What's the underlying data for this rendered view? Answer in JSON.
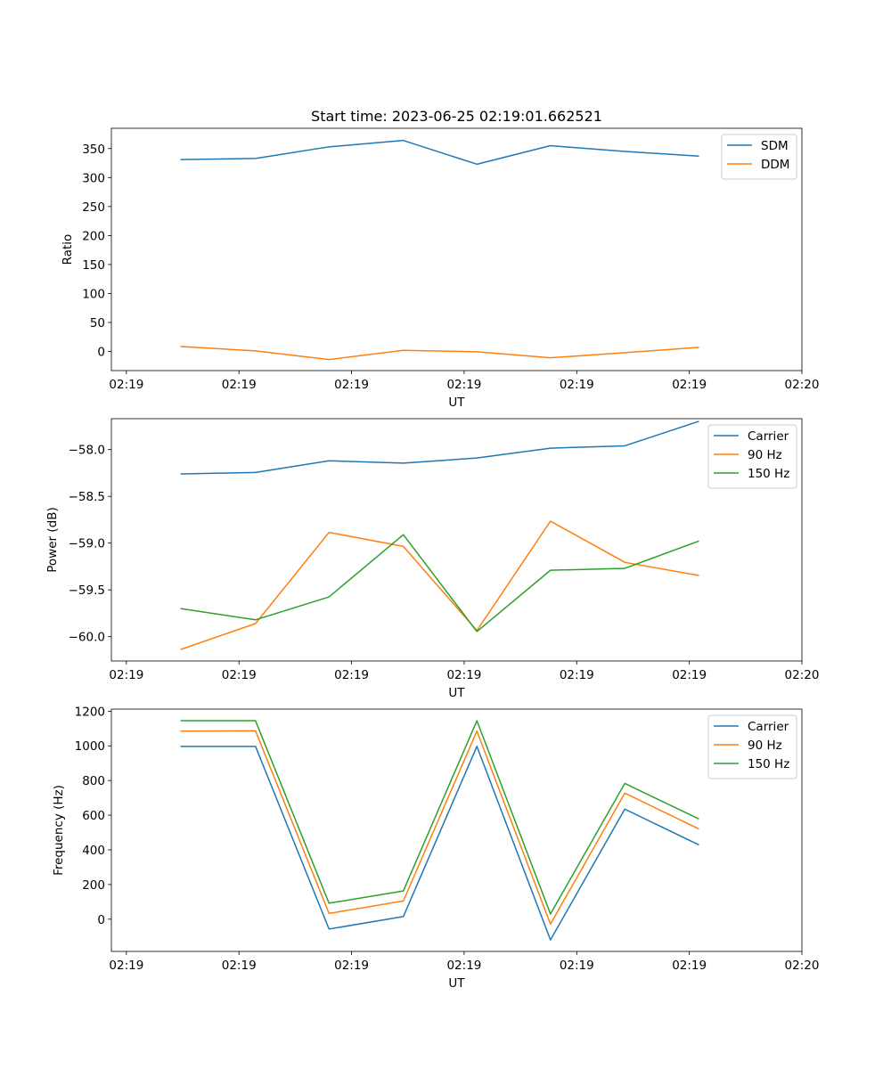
{
  "figure_title": "Start time: 2023-06-25 02:19:01.662521",
  "x_axis": {
    "label": "UT",
    "range": [
      -0.2,
      9.0
    ],
    "ticks": [
      0,
      1.5,
      3,
      4.5,
      6,
      7.5,
      9
    ],
    "tick_labels": [
      "02:19",
      "02:19",
      "02:19",
      "02:19",
      "02:19",
      "02:19",
      "02:20"
    ]
  },
  "colors": {
    "blue": "#1f77b4",
    "orange": "#ff7f0e",
    "green": "#2ca02c"
  },
  "chart_data": [
    {
      "type": "line",
      "title": "Start time: 2023-06-25 02:19:01.662521",
      "xlabel": "UT",
      "ylabel": "Ratio",
      "x": [
        0.73,
        1.72,
        2.7,
        3.69,
        4.67,
        5.65,
        6.64,
        7.62
      ],
      "ylim": [
        -33,
        385
      ],
      "yticks": [
        0,
        50,
        100,
        150,
        200,
        250,
        300,
        350
      ],
      "ytick_labels": [
        "0",
        "50",
        "100",
        "150",
        "200",
        "250",
        "300",
        "350"
      ],
      "legend": "top-right",
      "series": [
        {
          "name": "SDM",
          "color": "#1f77b4",
          "values": [
            331,
            333,
            353,
            364,
            323,
            355,
            345,
            337
          ]
        },
        {
          "name": "DDM",
          "color": "#ff7f0e",
          "values": [
            8.5,
            1,
            -14,
            2,
            -0.5,
            -11,
            -2,
            7
          ]
        }
      ]
    },
    {
      "type": "line",
      "xlabel": "UT",
      "ylabel": "Power (dB)",
      "x": [
        0.73,
        1.72,
        2.7,
        3.69,
        4.67,
        5.65,
        6.64,
        7.62
      ],
      "ylim": [
        -60.26,
        -57.67
      ],
      "yticks": [
        -60.0,
        -59.5,
        -59.0,
        -58.5,
        -58.0
      ],
      "ytick_labels": [
        "−60.0",
        "−59.5",
        "−59.0",
        "−58.5",
        "−58.0"
      ],
      "legend": "top-right",
      "series": [
        {
          "name": "Carrier",
          "color": "#1f77b4",
          "values": [
            -58.26,
            -58.245,
            -58.12,
            -58.145,
            -58.09,
            -57.985,
            -57.96,
            -57.7
          ]
        },
        {
          "name": "90 Hz",
          "color": "#ff7f0e",
          "values": [
            -60.135,
            -59.86,
            -58.885,
            -59.035,
            -59.935,
            -58.765,
            -59.205,
            -59.345
          ]
        },
        {
          "name": "150 Hz",
          "color": "#2ca02c",
          "values": [
            -59.7,
            -59.82,
            -59.575,
            -58.91,
            -59.945,
            -59.29,
            -59.27,
            -58.98
          ]
        }
      ]
    },
    {
      "type": "line",
      "xlabel": "UT",
      "ylabel": "Frequency (Hz)",
      "x": [
        0.73,
        1.72,
        2.7,
        3.69,
        4.67,
        5.65,
        6.64,
        7.62
      ],
      "ylim": [
        -186,
        1212
      ],
      "yticks": [
        0,
        200,
        400,
        600,
        800,
        1000,
        1200
      ],
      "ytick_labels": [
        "0",
        "200",
        "400",
        "600",
        "800",
        "1000",
        "1200"
      ],
      "legend": "top-right",
      "series": [
        {
          "name": "Carrier",
          "color": "#1f77b4",
          "values": [
            997,
            997,
            -57,
            15,
            997,
            -120,
            635,
            430
          ]
        },
        {
          "name": "90 Hz",
          "color": "#ff7f0e",
          "values": [
            1085,
            1087,
            33,
            105,
            1085,
            -28,
            727,
            522
          ]
        },
        {
          "name": "150 Hz",
          "color": "#2ca02c",
          "values": [
            1145,
            1145,
            92,
            163,
            1145,
            30,
            783,
            580
          ]
        }
      ]
    }
  ]
}
